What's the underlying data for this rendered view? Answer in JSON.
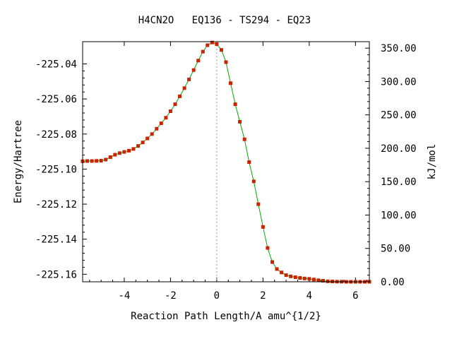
{
  "chart_data": {
    "type": "line",
    "title": "H4CN2O   EQ136 - TS294 - EQ23",
    "xlabel": "Reaction Path Length/A amu^{1/2}",
    "ylabel": "Energy/Hartree",
    "y2label": "kJ/mol",
    "xlim": [
      -5.8,
      6.6
    ],
    "ylim": [
      -225.1643,
      -225.0273
    ],
    "y2lim": [
      0,
      359.7
    ],
    "xticks": [
      -4,
      -2,
      0,
      2,
      4,
      6
    ],
    "xtick_labels": [
      "-4",
      "-2",
      "0",
      "2",
      "4",
      "6"
    ],
    "yticks": [
      -225.04,
      -225.06,
      -225.08,
      -225.1,
      -225.12,
      -225.14,
      -225.16
    ],
    "ytick_labels": [
      "-225.04",
      "-225.06",
      "-225.08",
      "-225.10",
      "-225.12",
      "-225.14",
      "-225.16"
    ],
    "y2ticks": [
      0,
      50,
      100,
      150,
      200,
      250,
      300,
      350
    ],
    "y2tick_labels": [
      "0.00",
      "50.00",
      "100.00",
      "150.00",
      "200.00",
      "250.00",
      "300.00",
      "350.00"
    ],
    "ts_marker_x": 0,
    "line_color": "#00aa00",
    "marker_color": "#cc2200",
    "series": [
      {
        "x": [
          -5.8,
          -5.6,
          -5.4,
          -5.2,
          -5.0,
          -4.8,
          -4.6,
          -4.4,
          -4.2,
          -4.0,
          -3.8,
          -3.6,
          -3.4,
          -3.2,
          -3.0,
          -2.8,
          -2.6,
          -2.4,
          -2.2,
          -2.0,
          -1.8,
          -1.6,
          -1.4,
          -1.2,
          -1.0,
          -0.8,
          -0.6,
          -0.4,
          -0.2,
          0.0,
          0.2,
          0.4,
          0.6,
          0.8,
          1.0,
          1.2,
          1.4,
          1.6,
          1.8,
          2.0,
          2.2,
          2.4,
          2.6,
          2.8,
          3.0,
          3.2,
          3.4,
          3.6,
          3.8,
          4.0,
          4.2,
          4.4,
          4.6,
          4.8,
          5.0,
          5.2,
          5.4,
          5.6,
          5.8,
          6.0,
          6.2,
          6.4,
          6.6
        ],
        "y": [
          -225.0955,
          -225.0954,
          -225.0954,
          -225.0953,
          -225.0952,
          -225.0946,
          -225.0932,
          -225.0918,
          -225.0909,
          -225.0902,
          -225.0895,
          -225.0885,
          -225.0868,
          -225.0848,
          -225.0825,
          -225.08,
          -225.077,
          -225.0739,
          -225.0707,
          -225.067,
          -225.063,
          -225.0585,
          -225.0538,
          -225.0488,
          -225.0435,
          -225.0381,
          -225.033,
          -225.0293,
          -225.0278,
          -225.0287,
          -225.032,
          -225.039,
          -225.051,
          -225.063,
          -225.073,
          -225.083,
          -225.096,
          -225.107,
          -225.12,
          -225.133,
          -225.145,
          -225.153,
          -225.157,
          -225.159,
          -225.1605,
          -225.1612,
          -225.1617,
          -225.1621,
          -225.1624,
          -225.1626,
          -225.163,
          -225.1634,
          -225.1637,
          -225.164,
          -225.1641,
          -225.1642,
          -225.1642,
          -225.1643,
          -225.1643,
          -225.1643,
          -225.1643,
          -225.1643,
          -225.1643
        ]
      }
    ]
  }
}
